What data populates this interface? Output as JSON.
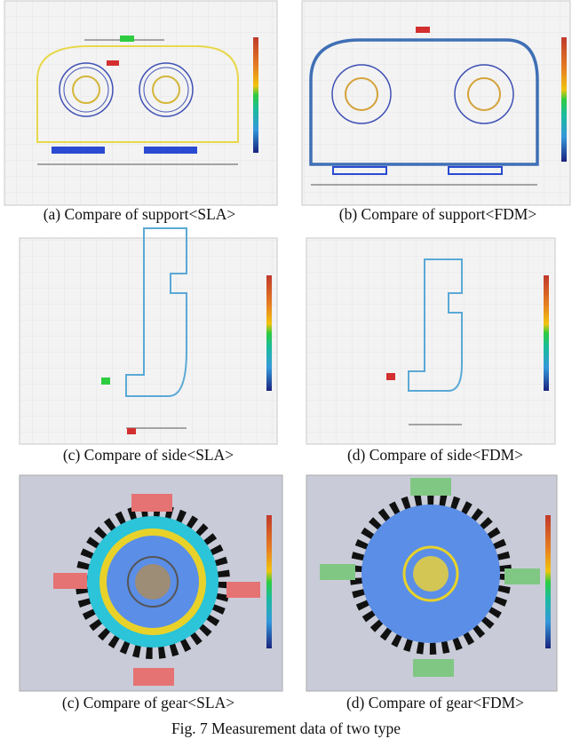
{
  "figure": {
    "panels": [
      {
        "caption": "(a) Compare of support<SLA>"
      },
      {
        "caption": "(b) Compare of support<FDM>"
      },
      {
        "caption": "(c) Compare of side<SLA>"
      },
      {
        "caption": "(d) Compare of side<FDM>"
      },
      {
        "caption": "(c) Compare of gear<SLA>"
      },
      {
        "caption": "(d) Compare of gear<FDM>"
      }
    ],
    "caption": "Fig. 7 Measurement data of two type"
  }
}
